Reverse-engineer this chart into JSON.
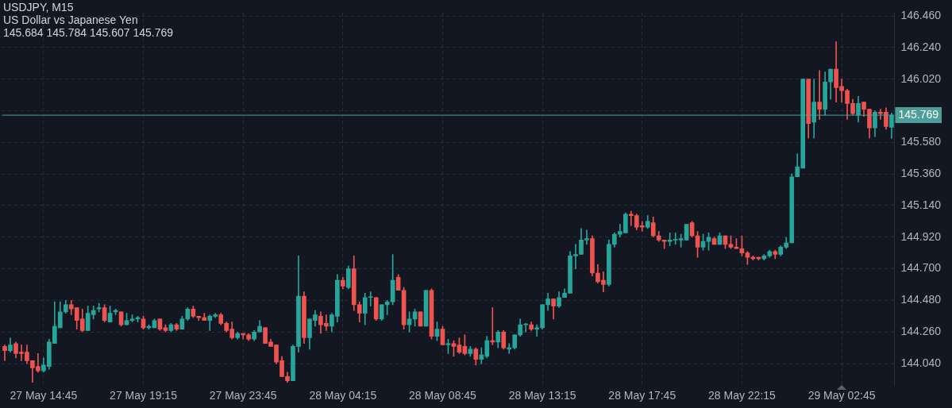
{
  "chart_data": {
    "type": "candlestick",
    "title": "USDJPY, M15",
    "subtitle": "US Dollar vs Japanese Yen",
    "annotations": [
      "145.684 145.784 145.607 145.769"
    ],
    "categories": [
      null,
      null,
      null,
      null,
      null,
      null,
      null,
      "27 May 14:45",
      null,
      null,
      null,
      null,
      null,
      null,
      null,
      null,
      null,
      null,
      null,
      null,
      null,
      null,
      null,
      null,
      null,
      "27 May 19:15",
      null,
      null,
      null,
      null,
      null,
      null,
      null,
      null,
      null,
      null,
      null,
      null,
      null,
      null,
      null,
      null,
      null,
      "27 May 23:45",
      null,
      null,
      null,
      null,
      null,
      null,
      null,
      null,
      null,
      null,
      null,
      null,
      null,
      null,
      null,
      null,
      null,
      "28 May 04:15",
      null,
      null,
      null,
      null,
      null,
      null,
      null,
      null,
      null,
      null,
      null,
      null,
      null,
      null,
      null,
      null,
      null,
      "28 May 08:45",
      null,
      null,
      null,
      null,
      null,
      null,
      null,
      null,
      null,
      null,
      null,
      null,
      null,
      null,
      null,
      null,
      null,
      "28 May 13:15",
      null,
      null,
      null,
      null,
      null,
      null,
      null,
      null,
      null,
      null,
      null,
      null,
      null,
      null,
      null,
      null,
      null,
      "28 May 17:45",
      null,
      null,
      null,
      null,
      null,
      null,
      null,
      null,
      null,
      null,
      null,
      null,
      null,
      null,
      null,
      null,
      null,
      "28 May 22:15",
      null,
      null,
      null,
      null,
      null,
      null,
      null,
      null,
      null,
      null,
      null,
      null,
      null,
      null,
      null,
      null,
      null,
      "29 May 02:45",
      null,
      null,
      null,
      null,
      null,
      null,
      null,
      null,
      null
    ],
    "ohlc": [
      [
        144.16,
        144.17,
        144.06,
        144.13
      ],
      [
        144.13,
        144.22,
        144.12,
        144.17
      ],
      [
        144.18,
        144.19,
        144.08,
        144.11
      ],
      [
        144.12,
        144.17,
        144.06,
        144.11
      ],
      [
        144.12,
        144.17,
        144.04,
        144.06
      ],
      [
        144.06,
        144.06,
        143.91,
        144.01
      ],
      [
        144.02,
        144.11,
        143.98,
        143.99
      ],
      [
        143.99,
        144.08,
        143.98,
        144.03
      ],
      [
        144.02,
        144.21,
        144.0,
        144.19
      ],
      [
        144.18,
        144.47,
        144.18,
        144.3
      ],
      [
        144.29,
        144.47,
        144.29,
        144.4
      ],
      [
        144.4,
        144.48,
        144.39,
        144.45
      ],
      [
        144.45,
        144.48,
        144.38,
        144.42
      ],
      [
        144.43,
        144.43,
        144.28,
        144.34
      ],
      [
        144.35,
        144.42,
        144.26,
        144.27
      ],
      [
        144.27,
        144.44,
        144.27,
        144.39
      ],
      [
        144.38,
        144.44,
        144.35,
        144.41
      ],
      [
        144.42,
        144.46,
        144.4,
        144.43
      ],
      [
        144.43,
        144.45,
        144.33,
        144.34
      ],
      [
        144.33,
        144.44,
        144.33,
        144.39
      ],
      [
        144.4,
        144.42,
        144.38,
        144.41
      ],
      [
        144.4,
        144.4,
        144.3,
        144.31
      ],
      [
        144.31,
        144.39,
        144.31,
        144.34
      ],
      [
        144.34,
        144.38,
        144.33,
        144.35
      ],
      [
        144.35,
        144.37,
        144.33,
        144.36
      ],
      [
        144.35,
        144.37,
        144.28,
        144.29
      ],
      [
        144.29,
        144.31,
        144.28,
        144.3
      ],
      [
        144.29,
        144.35,
        144.29,
        144.34
      ],
      [
        144.35,
        144.35,
        144.27,
        144.28
      ],
      [
        144.29,
        144.31,
        144.26,
        144.27
      ],
      [
        144.27,
        144.32,
        144.26,
        144.31
      ],
      [
        144.31,
        144.32,
        144.27,
        144.28
      ],
      [
        144.28,
        144.37,
        144.28,
        144.35
      ],
      [
        144.35,
        144.43,
        144.34,
        144.42
      ],
      [
        144.42,
        144.44,
        144.36,
        144.37
      ],
      [
        144.37,
        144.37,
        144.34,
        144.36
      ],
      [
        144.36,
        144.39,
        144.34,
        144.34
      ],
      [
        144.34,
        144.38,
        144.27,
        144.37
      ],
      [
        144.37,
        144.39,
        144.36,
        144.38
      ],
      [
        144.38,
        144.39,
        144.31,
        144.32
      ],
      [
        144.32,
        144.33,
        144.26,
        144.27
      ],
      [
        144.28,
        144.33,
        144.21,
        144.22
      ],
      [
        144.22,
        144.26,
        144.21,
        144.25
      ],
      [
        144.25,
        144.25,
        144.21,
        144.24
      ],
      [
        144.24,
        144.25,
        144.2,
        144.21
      ],
      [
        144.21,
        144.27,
        144.2,
        144.26
      ],
      [
        144.26,
        144.34,
        144.26,
        144.3
      ],
      [
        144.29,
        144.29,
        144.18,
        144.18
      ],
      [
        144.19,
        144.21,
        144.16,
        144.16
      ],
      [
        144.17,
        144.17,
        144.04,
        144.05
      ],
      [
        144.06,
        144.09,
        143.95,
        143.95
      ],
      [
        143.95,
        143.98,
        143.91,
        143.92
      ],
      [
        143.92,
        144.17,
        143.92,
        144.16
      ],
      [
        144.16,
        144.79,
        144.12,
        144.51
      ],
      [
        144.51,
        144.54,
        144.18,
        144.22
      ],
      [
        144.22,
        144.35,
        144.14,
        144.35
      ],
      [
        144.34,
        144.41,
        144.3,
        144.38
      ],
      [
        144.37,
        144.4,
        144.25,
        144.31
      ],
      [
        144.32,
        144.38,
        144.27,
        144.3
      ],
      [
        144.3,
        144.39,
        144.26,
        144.38
      ],
      [
        144.37,
        144.66,
        144.33,
        144.62
      ],
      [
        144.62,
        144.64,
        144.56,
        144.58
      ],
      [
        144.57,
        144.72,
        144.56,
        144.7
      ],
      [
        144.7,
        144.79,
        144.41,
        144.45
      ],
      [
        144.45,
        144.47,
        144.33,
        144.39
      ],
      [
        144.39,
        144.53,
        144.31,
        144.5
      ],
      [
        144.5,
        144.54,
        144.44,
        144.5
      ],
      [
        144.5,
        144.5,
        144.34,
        144.35
      ],
      [
        144.35,
        144.45,
        144.34,
        144.45
      ],
      [
        144.45,
        144.48,
        144.38,
        144.47
      ],
      [
        144.47,
        144.8,
        144.45,
        144.62
      ],
      [
        144.64,
        144.66,
        144.55,
        144.55
      ],
      [
        144.55,
        144.57,
        144.28,
        144.31
      ],
      [
        144.31,
        144.4,
        144.26,
        144.35
      ],
      [
        144.35,
        144.42,
        144.3,
        144.4
      ],
      [
        144.4,
        144.4,
        144.3,
        144.3
      ],
      [
        144.3,
        144.55,
        144.3,
        144.55
      ],
      [
        144.55,
        144.56,
        144.21,
        144.23
      ],
      [
        144.23,
        144.33,
        144.2,
        144.28
      ],
      [
        144.28,
        144.3,
        144.17,
        144.17
      ],
      [
        144.17,
        144.21,
        144.11,
        144.18
      ],
      [
        144.18,
        144.2,
        144.09,
        144.16
      ],
      [
        144.17,
        144.22,
        144.11,
        144.12
      ],
      [
        144.16,
        144.24,
        144.1,
        144.11
      ],
      [
        144.11,
        144.16,
        144.09,
        144.14
      ],
      [
        144.14,
        144.15,
        144.03,
        144.07
      ],
      [
        144.07,
        144.15,
        144.04,
        144.1
      ],
      [
        144.09,
        144.23,
        144.08,
        144.2
      ],
      [
        144.2,
        144.43,
        144.17,
        144.19
      ],
      [
        144.19,
        144.27,
        144.15,
        144.26
      ],
      [
        144.26,
        144.27,
        144.14,
        144.15
      ],
      [
        144.14,
        144.18,
        144.11,
        144.15
      ],
      [
        144.15,
        144.24,
        144.14,
        144.24
      ],
      [
        144.24,
        144.35,
        144.23,
        144.31
      ],
      [
        144.31,
        144.32,
        144.26,
        144.31
      ],
      [
        144.31,
        144.33,
        144.27,
        144.28
      ],
      [
        144.28,
        144.31,
        144.23,
        144.29
      ],
      [
        144.29,
        144.45,
        144.28,
        144.45
      ],
      [
        144.45,
        144.53,
        144.41,
        144.49
      ],
      [
        144.49,
        144.49,
        144.35,
        144.44
      ],
      [
        144.44,
        144.54,
        144.43,
        144.5
      ],
      [
        144.5,
        144.56,
        144.5,
        144.53
      ],
      [
        144.53,
        144.82,
        144.53,
        144.79
      ],
      [
        144.79,
        144.87,
        144.7,
        144.8
      ],
      [
        144.8,
        144.98,
        144.8,
        144.9
      ],
      [
        144.9,
        144.97,
        144.87,
        144.91
      ],
      [
        144.91,
        144.93,
        144.65,
        144.67
      ],
      [
        144.67,
        144.73,
        144.6,
        144.61
      ],
      [
        144.62,
        144.68,
        144.54,
        144.59
      ],
      [
        144.59,
        144.9,
        144.58,
        144.87
      ],
      [
        144.87,
        144.95,
        144.85,
        144.94
      ],
      [
        144.94,
        145.01,
        144.92,
        144.96
      ],
      [
        144.95,
        145.09,
        144.95,
        145.08
      ],
      [
        145.08,
        145.1,
        145.0,
        145.07
      ],
      [
        145.07,
        145.08,
        144.97,
        144.99
      ],
      [
        145.0,
        145.03,
        144.96,
        144.99
      ],
      [
        144.99,
        145.07,
        144.98,
        145.03
      ],
      [
        145.02,
        145.06,
        144.92,
        144.93
      ],
      [
        144.93,
        144.96,
        144.89,
        144.9
      ],
      [
        144.9,
        144.9,
        144.84,
        144.89
      ],
      [
        144.89,
        144.95,
        144.86,
        144.9
      ],
      [
        144.9,
        144.95,
        144.87,
        144.9
      ],
      [
        144.9,
        144.94,
        144.85,
        144.91
      ],
      [
        144.9,
        145.01,
        144.9,
        145.01
      ],
      [
        145.02,
        145.03,
        144.92,
        144.93
      ],
      [
        144.93,
        144.96,
        144.78,
        144.85
      ],
      [
        144.85,
        144.94,
        144.83,
        144.89
      ],
      [
        144.89,
        144.95,
        144.83,
        144.92
      ],
      [
        144.91,
        144.92,
        144.87,
        144.87
      ],
      [
        144.87,
        144.95,
        144.87,
        144.93
      ],
      [
        144.93,
        144.93,
        144.84,
        144.87
      ],
      [
        144.87,
        144.93,
        144.84,
        144.85
      ],
      [
        144.85,
        144.91,
        144.84,
        144.84
      ],
      [
        144.84,
        144.93,
        144.79,
        144.81
      ],
      [
        144.81,
        144.82,
        144.73,
        144.78
      ],
      [
        144.78,
        144.79,
        144.76,
        144.77
      ],
      [
        144.78,
        144.78,
        144.76,
        144.77
      ],
      [
        144.77,
        144.8,
        144.76,
        144.79
      ],
      [
        144.79,
        144.83,
        144.78,
        144.82
      ],
      [
        144.82,
        144.83,
        144.77,
        144.8
      ],
      [
        144.8,
        144.86,
        144.79,
        144.85
      ],
      [
        144.85,
        144.92,
        144.84,
        144.88
      ],
      [
        144.88,
        145.36,
        144.88,
        145.34
      ],
      [
        145.34,
        145.5,
        145.34,
        145.41
      ],
      [
        145.4,
        146.02,
        145.4,
        146.02
      ],
      [
        146.02,
        146.02,
        145.61,
        145.71
      ],
      [
        145.72,
        146.02,
        145.61,
        145.86
      ],
      [
        145.86,
        146.08,
        145.74,
        145.81
      ],
      [
        145.81,
        146.07,
        145.77,
        146.0
      ],
      [
        146.0,
        146.09,
        145.88,
        146.09
      ],
      [
        146.09,
        146.28,
        145.86,
        145.96
      ],
      [
        145.97,
        146.02,
        145.86,
        145.94
      ],
      [
        145.94,
        145.95,
        145.74,
        145.85
      ],
      [
        145.85,
        145.88,
        145.77,
        145.78
      ],
      [
        145.77,
        145.9,
        145.72,
        145.85
      ],
      [
        145.86,
        145.86,
        145.76,
        145.81
      ],
      [
        145.81,
        145.81,
        145.61,
        145.68
      ],
      [
        145.68,
        145.8,
        145.62,
        145.79
      ],
      [
        145.79,
        145.81,
        145.74,
        145.78
      ],
      [
        145.79,
        145.82,
        145.67,
        145.69
      ],
      [
        145.684,
        145.784,
        145.607,
        145.769
      ]
    ],
    "colors": [
      "#ef5350",
      "#26a69a",
      "#ef5350",
      "#ef5350",
      "#ef5350",
      "#ef5350",
      "#ef5350",
      "#26a69a",
      "#26a69a",
      "#26a69a",
      "#26a69a",
      "#26a69a",
      "#ef5350",
      "#ef5350",
      "#ef5350",
      "#26a69a",
      "#26a69a",
      "#26a69a",
      "#ef5350",
      "#26a69a",
      "#26a69a",
      "#ef5350",
      "#26a69a",
      "#26a69a",
      "#26a69a",
      "#ef5350",
      "#26a69a",
      "#26a69a",
      "#ef5350",
      "#ef5350",
      "#26a69a",
      "#ef5350",
      "#26a69a",
      "#26a69a",
      "#ef5350",
      "#ef5350",
      "#ef5350",
      "#26a69a",
      "#26a69a",
      "#ef5350",
      "#ef5350",
      "#ef5350",
      "#26a69a",
      "#ef5350",
      "#ef5350",
      "#26a69a",
      "#26a69a",
      "#ef5350",
      "#ef5350",
      "#ef5350",
      "#ef5350",
      "#ef5350",
      "#26a69a",
      "#26a69a",
      "#ef5350",
      "#26a69a",
      "#26a69a",
      "#ef5350",
      "#ef5350",
      "#26a69a",
      "#26a69a",
      "#ef5350",
      "#26a69a",
      "#ef5350",
      "#ef5350",
      "#26a69a",
      "#26a69a",
      "#ef5350",
      "#26a69a",
      "#26a69a",
      "#26a69a",
      "#ef5350",
      "#ef5350",
      "#26a69a",
      "#26a69a",
      "#ef5350",
      "#26a69a",
      "#ef5350",
      "#26a69a",
      "#ef5350",
      "#26a69a",
      "#ef5350",
      "#ef5350",
      "#ef5350",
      "#26a69a",
      "#ef5350",
      "#26a69a",
      "#26a69a",
      "#ef5350",
      "#26a69a",
      "#ef5350",
      "#26a69a",
      "#26a69a",
      "#26a69a",
      "#26a69a",
      "#ef5350",
      "#26a69a",
      "#26a69a",
      "#26a69a",
      "#ef5350",
      "#26a69a",
      "#26a69a",
      "#26a69a",
      "#26a69a",
      "#26a69a",
      "#26a69a",
      "#ef5350",
      "#ef5350",
      "#ef5350",
      "#26a69a",
      "#26a69a",
      "#26a69a",
      "#26a69a",
      "#ef5350",
      "#ef5350",
      "#ef5350",
      "#26a69a",
      "#ef5350",
      "#ef5350",
      "#ef5350",
      "#26a69a",
      "#26a69a",
      "#26a69a",
      "#26a69a",
      "#ef5350",
      "#ef5350",
      "#26a69a",
      "#26a69a",
      "#ef5350",
      "#26a69a",
      "#ef5350",
      "#ef5350",
      "#ef5350",
      "#ef5350",
      "#ef5350",
      "#ef5350",
      "#ef5350",
      "#26a69a",
      "#26a69a",
      "#ef5350",
      "#26a69a",
      "#26a69a",
      "#26a69a",
      "#26a69a",
      "#26a69a",
      "#ef5350",
      "#26a69a",
      "#ef5350",
      "#26a69a",
      "#26a69a",
      "#ef5350",
      "#ef5350",
      "#ef5350",
      "#ef5350",
      "#26a69a",
      "#ef5350",
      "#ef5350",
      "#26a69a",
      "#ef5350",
      "#ef5350",
      "#26a69a"
    ],
    "ylim": [
      143.89,
      146.48
    ],
    "yticks": [
      {
        "value": 144.04,
        "label": "144.040"
      },
      {
        "value": 144.26,
        "label": "144.260"
      },
      {
        "value": 144.48,
        "label": "144.480"
      },
      {
        "value": 144.7,
        "label": "144.700"
      },
      {
        "value": 144.92,
        "label": "144.920"
      },
      {
        "value": 145.14,
        "label": "145.140"
      },
      {
        "value": 145.36,
        "label": "145.360"
      },
      {
        "value": 145.58,
        "label": "145.580"
      },
      {
        "value": 145.8,
        "label": null
      },
      {
        "value": 146.02,
        "label": "146.020"
      },
      {
        "value": 146.24,
        "label": "146.240"
      },
      {
        "value": 146.46,
        "label": "146.460"
      }
    ],
    "ref_lines": [
      {
        "axis": "y",
        "value": 145.769,
        "label": "145.769",
        "color": "#4d9e98"
      }
    ],
    "grid": true,
    "legend": false
  }
}
